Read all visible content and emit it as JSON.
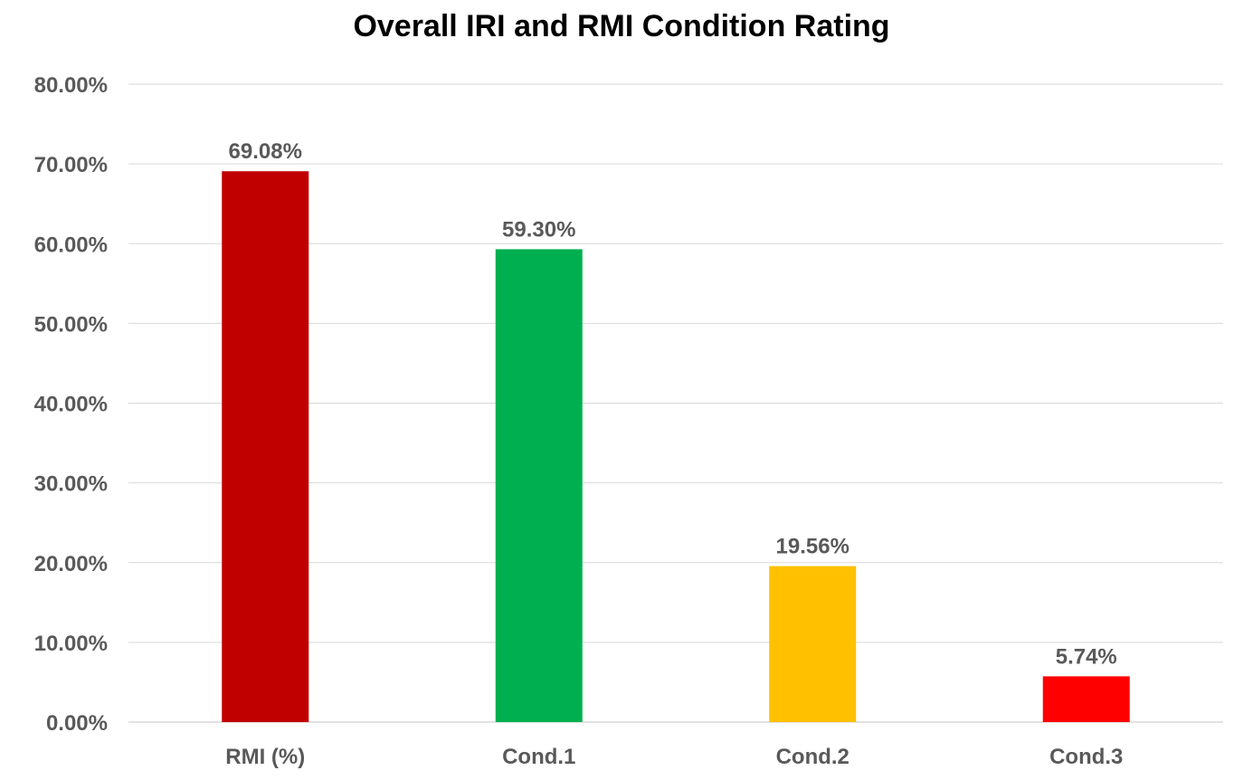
{
  "chart_data": {
    "type": "bar",
    "title": "Overall IRI and RMI Condition Rating",
    "xlabel": "",
    "ylabel": "",
    "categories": [
      "RMI (%)",
      "Cond.1",
      "Cond.2",
      "Cond.3"
    ],
    "values": [
      69.08,
      59.3,
      19.56,
      5.74
    ],
    "data_labels": [
      "69.08%",
      "59.30%",
      "19.56%",
      "5.74%"
    ],
    "bar_colors": [
      "#c00000",
      "#00b050",
      "#ffc000",
      "#ff0000"
    ],
    "ylim": [
      0,
      80
    ],
    "yticks": [
      0,
      10,
      20,
      30,
      40,
      50,
      60,
      70,
      80
    ],
    "ytick_labels": [
      "0.00%",
      "10.00%",
      "20.00%",
      "30.00%",
      "40.00%",
      "50.00%",
      "60.00%",
      "70.00%",
      "80.00%"
    ],
    "grid": true,
    "legend": "none",
    "text_color": "#595959",
    "grid_color": "#d9d9d9"
  }
}
